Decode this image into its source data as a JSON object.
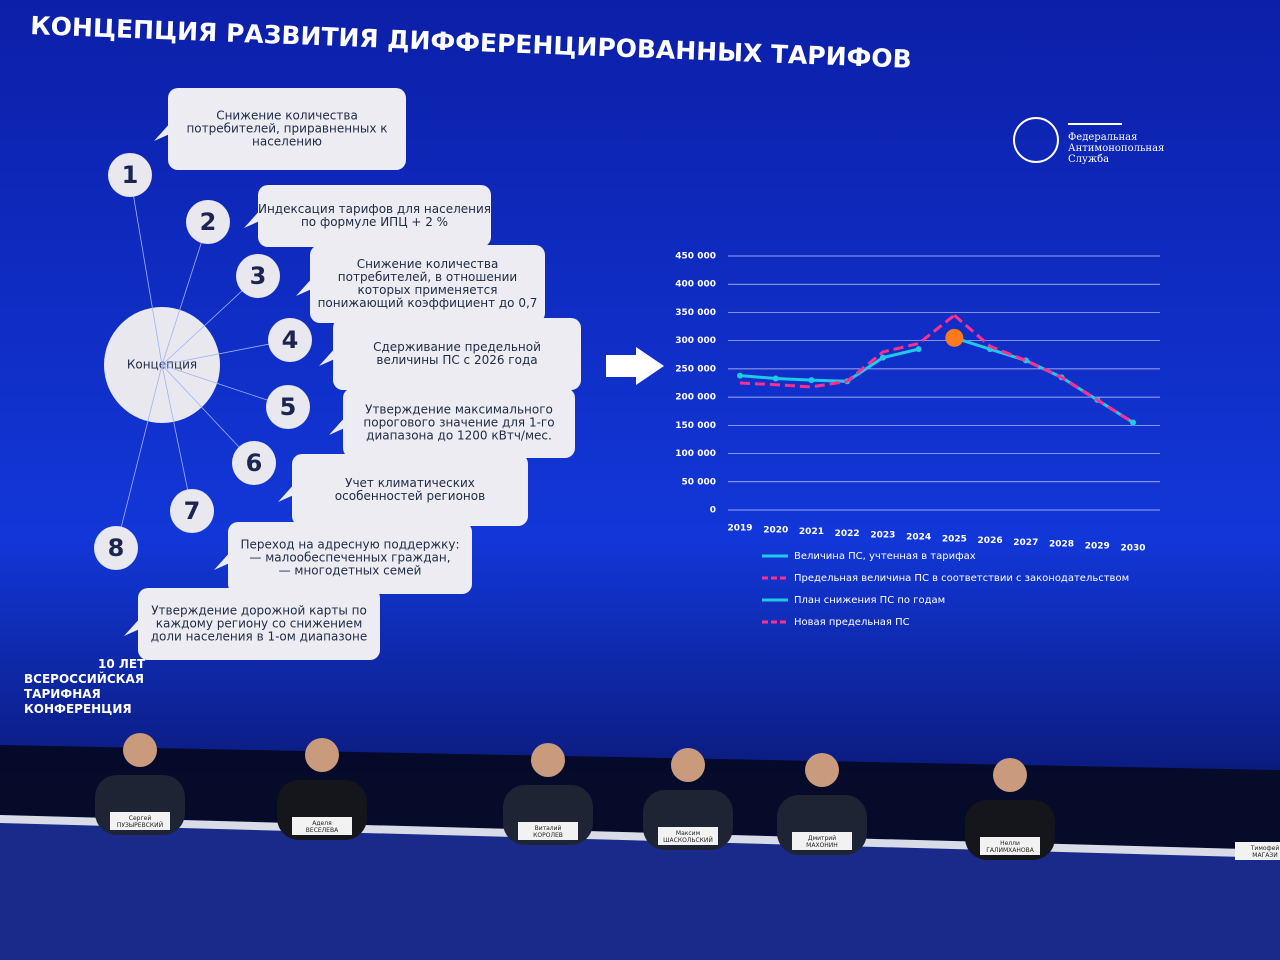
{
  "slide": {
    "title": "КОНЦЕПЦИЯ РАЗВИТИЯ ДИФФЕРЕНЦИРОВАННЫХ ТАРИФОВ",
    "logo": [
      "Федеральная",
      "Антимонопольная",
      "Служба"
    ],
    "center": "Концепция",
    "items": [
      {
        "number": 1,
        "lines": [
          "Снижение количества",
          "потребителей, приравненных к",
          "населению"
        ]
      },
      {
        "number": 2,
        "lines": [
          "Индексация тарифов для населения",
          "по формуле ИПЦ + 2 %"
        ]
      },
      {
        "number": 3,
        "lines": [
          "Снижение количества",
          "потребителей, в отношении",
          "которых применяется",
          "понижающий коэффициент до 0,7"
        ]
      },
      {
        "number": 4,
        "lines": [
          "Сдерживание предельной",
          "величины ПС с 2026 года"
        ]
      },
      {
        "number": 5,
        "lines": [
          "Утверждение максимального",
          "порогового значение для 1-го",
          "диапазона до 1200 кВтч/мес."
        ]
      },
      {
        "number": 6,
        "lines": [
          "Учет климатических",
          "особенностей регионов"
        ]
      },
      {
        "number": 7,
        "lines": [
          "Переход на адресную поддержку:",
          "— малообеспеченных граждан,",
          "— многодетных семей"
        ]
      },
      {
        "number": 8,
        "lines": []
      }
    ],
    "final_note": [
      "Утверждение дорожной карты по",
      "каждому региону со снижением",
      "доли населения в 1-ом диапазоне"
    ],
    "conference": [
      "10 ЛЕТ",
      "ВСЕРОССИЙСКАЯ",
      "ТАРИФНАЯ",
      "КОНФЕРЕНЦИЯ"
    ]
  },
  "nameplates": [
    [
      "Сергей",
      "ПУЗЫРЕВСКИЙ"
    ],
    [
      "Аделя",
      "ВЕСЕЛЕВА"
    ],
    [
      "Виталий",
      "КОРОЛЕВ"
    ],
    [
      "Максим",
      "ШАСКОЛЬСКИЙ"
    ],
    [
      "Дмитрий",
      "МАХОНИН"
    ],
    [
      "Нелли",
      "ГАЛИМХАНОВА"
    ],
    [
      "Тимофей",
      "МАГАЗИ"
    ]
  ],
  "chart_data": {
    "type": "line",
    "categories": [
      "2019",
      "2020",
      "2021",
      "2022",
      "2023",
      "2024",
      "2025",
      "2026",
      "2027",
      "2028",
      "2029",
      "2030"
    ],
    "ylim": [
      0,
      450000
    ],
    "yticks": [
      {
        "value": 0,
        "label": "0"
      },
      {
        "value": 50000,
        "label": "50 000"
      },
      {
        "value": 100000,
        "label": "100 000"
      },
      {
        "value": 150000,
        "label": "150 000"
      },
      {
        "value": 200000,
        "label": "200 000"
      },
      {
        "value": 250000,
        "label": "250 000"
      },
      {
        "value": 300000,
        "label": "300 000"
      },
      {
        "value": 350000,
        "label": "350 000"
      },
      {
        "value": 400000,
        "label": "400 000"
      },
      {
        "value": 450000,
        "label": "450 000"
      }
    ],
    "grid": true,
    "series": [
      {
        "name": "Величина ПС, учтенная в тарифах",
        "color": "#22c8e8",
        "dashed": false,
        "markers": true,
        "values": [
          238000,
          233000,
          230000,
          228000,
          270000,
          285000,
          null,
          null,
          null,
          null,
          null,
          null
        ]
      },
      {
        "name": "Предельная величина ПС в соответствии с законодательством",
        "color": "#ff2f8e",
        "dashed": true,
        "markers": false,
        "values": [
          225000,
          222000,
          218000,
          228000,
          280000,
          295000,
          345000,
          null,
          null,
          null,
          null,
          null
        ]
      },
      {
        "name": "План снижения ПС по годам",
        "color": "#22c8e8",
        "dashed": false,
        "markers": true,
        "values": [
          null,
          null,
          null,
          null,
          null,
          null,
          305000,
          285000,
          265000,
          235000,
          195000,
          155000
        ]
      },
      {
        "name": "Новая предельная ПС",
        "color": "#ff2f8e",
        "dashed": true,
        "markers": false,
        "values": [
          null,
          null,
          null,
          null,
          null,
          null,
          345000,
          290000,
          265000,
          235000,
          195000,
          155000
        ]
      }
    ]
  }
}
